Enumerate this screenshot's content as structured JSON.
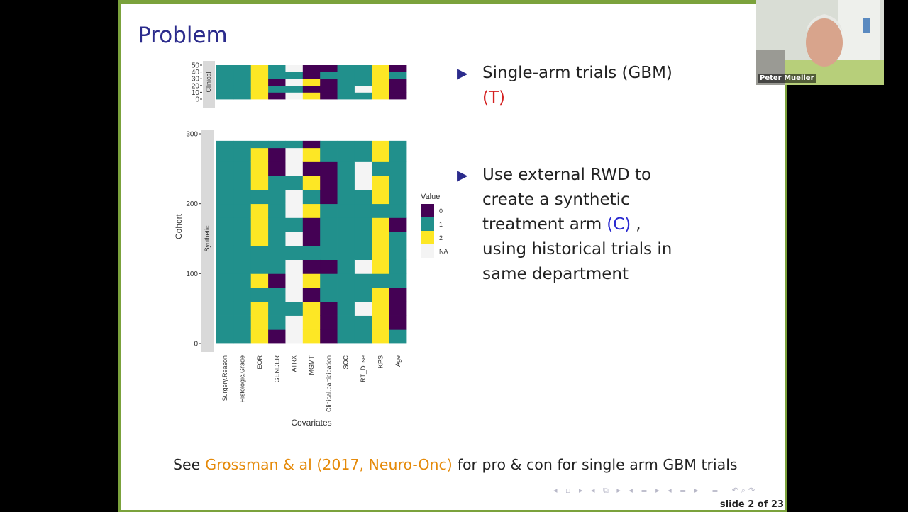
{
  "slide": {
    "title": "Problem",
    "bullets": [
      {
        "lines": [
          [
            {
              "text": "Single-arm trials (GBM)"
            }
          ],
          [
            {
              "text": "(T)",
              "color": "#d42020"
            }
          ]
        ]
      },
      {
        "lines": [
          [
            {
              "text": "Use external RWD to"
            }
          ],
          [
            {
              "text": "create a synthetic"
            }
          ],
          [
            {
              "text": "treatment arm"
            },
            {
              "text": "(C)",
              "color": "#2a2ad0"
            },
            {
              "text": ","
            }
          ],
          [
            {
              "text": "using historical trials in"
            }
          ],
          [
            {
              "text": "same department"
            }
          ]
        ]
      }
    ],
    "footnote": {
      "prefix": "See",
      "citation": "Grossman & al (2017, Neuro-Onc)",
      "suffix": "for pro & con for single arm GBM trials"
    },
    "page_number": "slide 2 of 23"
  },
  "chart_data": {
    "type": "heatmap",
    "x_label": "Covariates",
    "y_label": "Cohort",
    "legend_title": "Value",
    "legend": [
      {
        "value": 0,
        "label": "0",
        "color": "#440154"
      },
      {
        "value": 1,
        "label": "1",
        "color": "#21908c"
      },
      {
        "value": 2,
        "label": "2",
        "color": "#fde725"
      },
      {
        "value": null,
        "label": "NA",
        "color": "#f4f4f4"
      }
    ],
    "categories": [
      "Surgery.Reason",
      "Histologic.Grade",
      "EOR",
      "GENDER",
      "ATRX",
      "MGMT",
      "Clinical.participation",
      "SOC",
      "RT_Dose",
      "KPS",
      "Age"
    ],
    "panels": [
      {
        "name": "Clinical",
        "ylim": [
          0,
          50
        ],
        "yticks": [
          0,
          10,
          20,
          30,
          40,
          50
        ],
        "bins": [
          0,
          10,
          20,
          30,
          40,
          50
        ],
        "columns": [
          [
            1,
            1,
            1,
            1,
            1
          ],
          [
            1,
            1,
            1,
            1,
            1
          ],
          [
            2,
            2,
            2,
            2,
            2
          ],
          [
            0,
            1,
            0,
            1,
            1
          ],
          [
            null,
            1,
            null,
            1,
            null
          ],
          [
            2,
            0,
            2,
            0,
            0
          ],
          [
            0,
            0,
            0,
            1,
            0
          ],
          [
            1,
            1,
            1,
            1,
            1
          ],
          [
            1,
            null,
            1,
            1,
            1
          ],
          [
            2,
            2,
            2,
            2,
            2
          ],
          [
            0,
            0,
            0,
            1,
            0
          ]
        ]
      },
      {
        "name": "Synthetic",
        "ylim": [
          0,
          300
        ],
        "yticks": [
          0,
          100,
          200,
          300
        ],
        "bins": [
          0,
          20,
          40,
          60,
          80,
          100,
          120,
          140,
          160,
          180,
          200,
          220,
          240,
          260,
          280,
          290
        ],
        "columns": [
          [
            1,
            1,
            1,
            1,
            1,
            1,
            1,
            1,
            1,
            1,
            1,
            1,
            1,
            1,
            1
          ],
          [
            1,
            1,
            1,
            1,
            1,
            1,
            1,
            1,
            1,
            1,
            1,
            1,
            1,
            1,
            1
          ],
          [
            2,
            2,
            2,
            1,
            2,
            1,
            1,
            2,
            2,
            2,
            1,
            2,
            2,
            2,
            1
          ],
          [
            0,
            1,
            1,
            1,
            0,
            1,
            1,
            1,
            1,
            1,
            1,
            1,
            0,
            0,
            1
          ],
          [
            null,
            null,
            1,
            null,
            null,
            null,
            1,
            null,
            1,
            null,
            null,
            1,
            null,
            null,
            1
          ],
          [
            2,
            2,
            2,
            0,
            2,
            0,
            1,
            0,
            0,
            2,
            1,
            2,
            0,
            2,
            0
          ],
          [
            0,
            0,
            0,
            1,
            1,
            0,
            1,
            1,
            1,
            1,
            0,
            0,
            0,
            1,
            1
          ],
          [
            1,
            1,
            1,
            1,
            1,
            1,
            1,
            1,
            1,
            1,
            1,
            1,
            1,
            1,
            1
          ],
          [
            1,
            1,
            null,
            1,
            1,
            null,
            1,
            1,
            1,
            1,
            1,
            null,
            null,
            1,
            1
          ],
          [
            2,
            2,
            2,
            2,
            1,
            2,
            2,
            2,
            2,
            1,
            2,
            2,
            1,
            2,
            2
          ],
          [
            1,
            0,
            0,
            0,
            1,
            1,
            1,
            1,
            0,
            1,
            1,
            1,
            1,
            1,
            1
          ]
        ]
      }
    ]
  },
  "video": {
    "participant": "Peter Mueller"
  }
}
